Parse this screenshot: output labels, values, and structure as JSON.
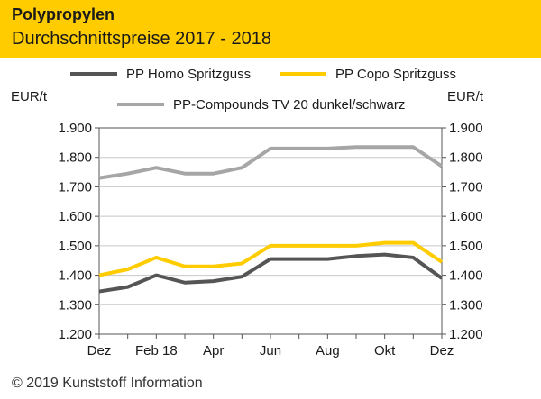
{
  "header": {
    "title": "Polypropylen",
    "subtitle": "Durchschnittspreise 2017 - 2018",
    "background": "#FFCC00"
  },
  "footer": {
    "copyright": "© 2019 Kunststoff Information"
  },
  "chart_data": {
    "type": "line",
    "title": "Polypropylen",
    "subtitle": "Durchschnittspreise 2017 - 2018",
    "ylabel_left": "EUR/t",
    "ylabel_right": "EUR/t",
    "ylim": [
      1200,
      1900
    ],
    "yticks": [
      1200,
      1300,
      1400,
      1500,
      1600,
      1700,
      1800,
      1900
    ],
    "ytick_labels": [
      "1.200",
      "1.300",
      "1.400",
      "1.500",
      "1.600",
      "1.700",
      "1.800",
      "1.900"
    ],
    "x_index": [
      0,
      1,
      2,
      3,
      4,
      5,
      6,
      7,
      8,
      9,
      10,
      11,
      12
    ],
    "xticks": [
      0,
      2,
      4,
      6,
      8,
      10,
      12
    ],
    "xtick_labels": [
      "Dez",
      "Feb 18",
      "Apr",
      "Jun",
      "Aug",
      "Okt",
      "Dez"
    ],
    "grid": true,
    "legend_position": "top",
    "series": [
      {
        "name": "PP Homo Spritzguss",
        "color": "#555555",
        "values": [
          1345,
          1360,
          1400,
          1375,
          1380,
          1395,
          1455,
          1455,
          1455,
          1465,
          1470,
          1460,
          1390
        ]
      },
      {
        "name": "PP Copo Spritzguss",
        "color": "#FFCC00",
        "values": [
          1400,
          1420,
          1460,
          1430,
          1430,
          1440,
          1500,
          1500,
          1500,
          1500,
          1510,
          1510,
          1445
        ]
      },
      {
        "name": "PP-Compounds TV 20 dunkel/schwarz",
        "color": "#A6A6A6",
        "values": [
          1730,
          1745,
          1765,
          1745,
          1745,
          1765,
          1830,
          1830,
          1830,
          1835,
          1835,
          1835,
          1770
        ]
      }
    ]
  }
}
